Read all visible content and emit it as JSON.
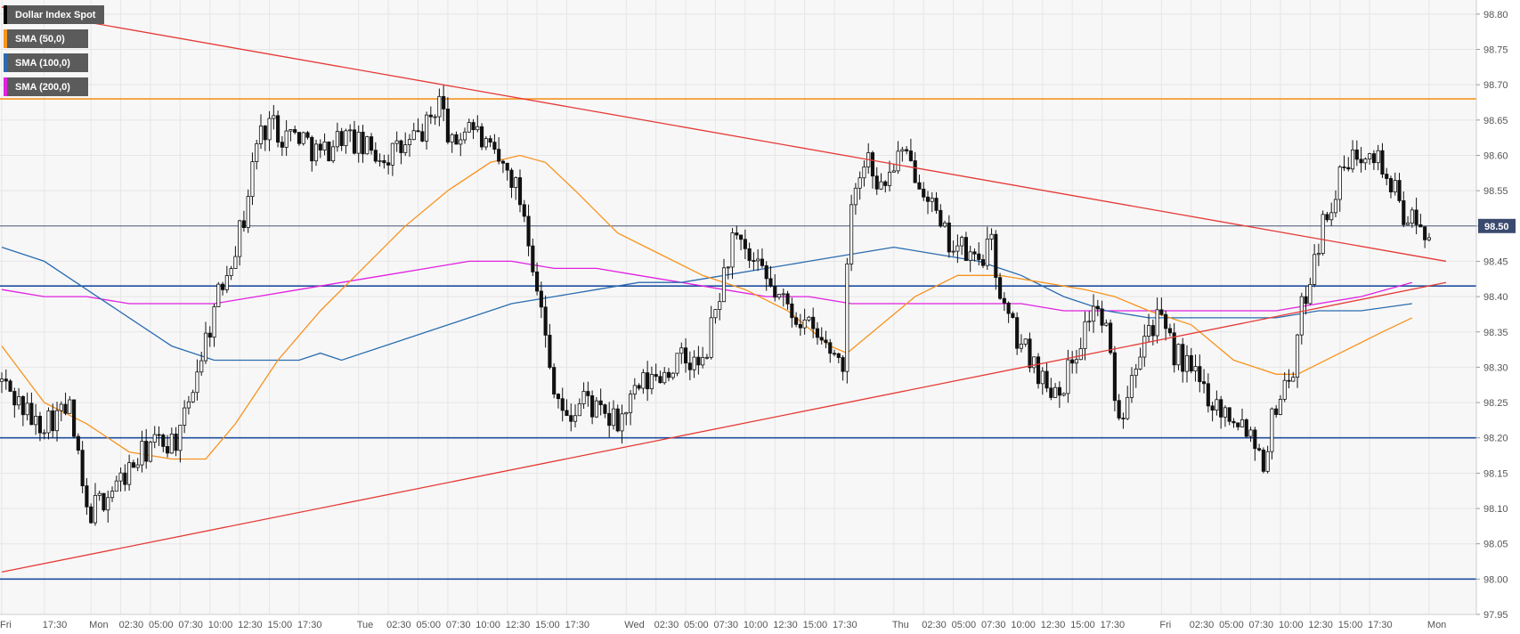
{
  "chart_data": {
    "type": "candlestick",
    "title": "Dollar Index Spot",
    "legend": [
      {
        "label": "Dollar Index Spot",
        "color": "#000000"
      },
      {
        "label": "SMA (50,0)",
        "color": "#f7931e"
      },
      {
        "label": "SMA (100,0)",
        "color": "#2b6cb0"
      },
      {
        "label": "SMA (200,0)",
        "color": "#e020e0"
      }
    ],
    "ylim": [
      97.95,
      98.82
    ],
    "y_ticks": [
      "98.80",
      "98.75",
      "98.70",
      "98.65",
      "98.60",
      "98.55",
      "98.50",
      "98.45",
      "98.40",
      "98.35",
      "98.30",
      "98.25",
      "98.20",
      "98.15",
      "98.10",
      "98.05",
      "98.00",
      "97.95"
    ],
    "y_tick_values": [
      98.8,
      98.75,
      98.7,
      98.65,
      98.6,
      98.55,
      98.5,
      98.45,
      98.4,
      98.35,
      98.3,
      98.25,
      98.2,
      98.15,
      98.1,
      98.05,
      98.0,
      97.95
    ],
    "x_ticks": [
      "Fri",
      "17:30",
      "Mon",
      "02:30",
      "05:00",
      "07:30",
      "10:00",
      "12:30",
      "15:00",
      "17:30",
      "Tue",
      "02:30",
      "05:00",
      "07:30",
      "10:00",
      "12:30",
      "15:00",
      "17:30",
      "Wed",
      "02:30",
      "05:00",
      "07:30",
      "10:00",
      "12:30",
      "15:00",
      "17:30",
      "Thu",
      "02:30",
      "05:00",
      "07:30",
      "10:00",
      "12:30",
      "15:00",
      "17:30",
      "Fri",
      "02:30",
      "05:00",
      "07:30",
      "10:00",
      "12:30",
      "15:00",
      "17:30",
      "Mon"
    ],
    "x_tick_positions": [
      0,
      10,
      21,
      28,
      35,
      42,
      49,
      56,
      63,
      70,
      84,
      91,
      98,
      105,
      112,
      119,
      126,
      133,
      147,
      154,
      161,
      168,
      175,
      182,
      189,
      196,
      210,
      217,
      224,
      231,
      238,
      245,
      252,
      259,
      273,
      280,
      287,
      294,
      301,
      308,
      315,
      322,
      336
    ],
    "bar_count": 340,
    "current_price": "98.50",
    "current_price_value": 98.5,
    "horizontal_levels": [
      {
        "value": 98.68,
        "color": "#f7931e"
      },
      {
        "value": 98.415,
        "color": "#1f4e9e"
      },
      {
        "value": 98.2,
        "color": "#1f4e9e"
      },
      {
        "value": 98.0,
        "color": "#1f4e9e"
      },
      {
        "value": 98.5,
        "color": "#4a5a7a"
      }
    ],
    "trendlines": [
      {
        "x1": 0,
        "y1": 98.81,
        "x2": 340,
        "y2": 98.45,
        "color": "#e53935"
      },
      {
        "x1": 0,
        "y1": 98.01,
        "x2": 340,
        "y2": 98.42,
        "color": "#e53935"
      }
    ],
    "anchors": [
      [
        0,
        98.28
      ],
      [
        8,
        98.22
      ],
      [
        16,
        98.24
      ],
      [
        20,
        98.09
      ],
      [
        28,
        98.14
      ],
      [
        35,
        98.19
      ],
      [
        42,
        98.2
      ],
      [
        46,
        98.3
      ],
      [
        49,
        98.36
      ],
      [
        53,
        98.44
      ],
      [
        57,
        98.51
      ],
      [
        60,
        98.62
      ],
      [
        63,
        98.65
      ],
      [
        66,
        98.63
      ],
      [
        70,
        98.63
      ],
      [
        75,
        98.6
      ],
      [
        80,
        98.63
      ],
      [
        85,
        98.61
      ],
      [
        90,
        98.6
      ],
      [
        95,
        98.61
      ],
      [
        100,
        98.64
      ],
      [
        103,
        98.68
      ],
      [
        106,
        98.61
      ],
      [
        110,
        98.65
      ],
      [
        115,
        98.6
      ],
      [
        120,
        98.57
      ],
      [
        123,
        98.52
      ],
      [
        126,
        98.42
      ],
      [
        129,
        98.3
      ],
      [
        133,
        98.22
      ],
      [
        137,
        98.26
      ],
      [
        141,
        98.23
      ],
      [
        145,
        98.22
      ],
      [
        150,
        98.27
      ],
      [
        155,
        98.29
      ],
      [
        160,
        98.31
      ],
      [
        165,
        98.3
      ],
      [
        168,
        98.38
      ],
      [
        172,
        98.48
      ],
      [
        176,
        98.45
      ],
      [
        180,
        98.42
      ],
      [
        184,
        98.39
      ],
      [
        188,
        98.37
      ],
      [
        192,
        98.34
      ],
      [
        196,
        98.32
      ],
      [
        198,
        98.31
      ],
      [
        200,
        98.55
      ],
      [
        204,
        98.6
      ],
      [
        207,
        98.55
      ],
      [
        211,
        98.6
      ],
      [
        215,
        98.58
      ],
      [
        218,
        98.55
      ],
      [
        221,
        98.49
      ],
      [
        225,
        98.47
      ],
      [
        229,
        98.45
      ],
      [
        233,
        98.47
      ],
      [
        236,
        98.38
      ],
      [
        240,
        98.33
      ],
      [
        243,
        98.31
      ],
      [
        246,
        98.27
      ],
      [
        250,
        98.28
      ],
      [
        254,
        98.34
      ],
      [
        257,
        98.39
      ],
      [
        260,
        98.35
      ],
      [
        263,
        98.22
      ],
      [
        266,
        98.3
      ],
      [
        269,
        98.35
      ],
      [
        272,
        98.37
      ],
      [
        275,
        98.33
      ],
      [
        279,
        98.3
      ],
      [
        283,
        98.27
      ],
      [
        287,
        98.24
      ],
      [
        291,
        98.23
      ],
      [
        294,
        98.21
      ],
      [
        297,
        98.17
      ],
      [
        300,
        98.25
      ],
      [
        304,
        98.3
      ],
      [
        306,
        98.38
      ],
      [
        309,
        98.46
      ],
      [
        312,
        98.52
      ],
      [
        316,
        98.58
      ],
      [
        319,
        98.6
      ],
      [
        322,
        98.62
      ],
      [
        326,
        98.57
      ],
      [
        330,
        98.52
      ],
      [
        334,
        98.49
      ],
      [
        336,
        98.5
      ]
    ],
    "sma50": [
      [
        0,
        98.33
      ],
      [
        10,
        98.25
      ],
      [
        20,
        98.22
      ],
      [
        30,
        98.18
      ],
      [
        40,
        98.17
      ],
      [
        48,
        98.17
      ],
      [
        55,
        98.22
      ],
      [
        65,
        98.31
      ],
      [
        75,
        98.38
      ],
      [
        85,
        98.44
      ],
      [
        95,
        98.5
      ],
      [
        105,
        98.55
      ],
      [
        115,
        98.59
      ],
      [
        122,
        98.6
      ],
      [
        128,
        98.59
      ],
      [
        135,
        98.55
      ],
      [
        145,
        98.49
      ],
      [
        155,
        98.46
      ],
      [
        165,
        98.43
      ],
      [
        175,
        98.41
      ],
      [
        185,
        98.38
      ],
      [
        195,
        98.33
      ],
      [
        199,
        98.32
      ],
      [
        205,
        98.35
      ],
      [
        215,
        98.4
      ],
      [
        225,
        98.43
      ],
      [
        235,
        98.43
      ],
      [
        245,
        98.42
      ],
      [
        255,
        98.41
      ],
      [
        262,
        98.4
      ],
      [
        270,
        98.38
      ],
      [
        280,
        98.36
      ],
      [
        290,
        98.31
      ],
      [
        300,
        98.29
      ],
      [
        305,
        98.29
      ],
      [
        315,
        98.32
      ],
      [
        325,
        98.35
      ],
      [
        332,
        98.37
      ]
    ],
    "sma100": [
      [
        0,
        98.47
      ],
      [
        10,
        98.45
      ],
      [
        20,
        98.41
      ],
      [
        30,
        98.37
      ],
      [
        40,
        98.33
      ],
      [
        50,
        98.31
      ],
      [
        60,
        98.31
      ],
      [
        70,
        98.31
      ],
      [
        75,
        98.32
      ],
      [
        80,
        98.31
      ],
      [
        90,
        98.33
      ],
      [
        100,
        98.35
      ],
      [
        110,
        98.37
      ],
      [
        120,
        98.39
      ],
      [
        130,
        98.4
      ],
      [
        140,
        98.41
      ],
      [
        150,
        98.42
      ],
      [
        160,
        98.42
      ],
      [
        170,
        98.43
      ],
      [
        180,
        98.44
      ],
      [
        190,
        98.45
      ],
      [
        200,
        98.46
      ],
      [
        210,
        98.47
      ],
      [
        220,
        98.46
      ],
      [
        230,
        98.45
      ],
      [
        240,
        98.43
      ],
      [
        250,
        98.4
      ],
      [
        260,
        98.38
      ],
      [
        270,
        98.37
      ],
      [
        280,
        98.37
      ],
      [
        290,
        98.37
      ],
      [
        300,
        98.37
      ],
      [
        310,
        98.38
      ],
      [
        320,
        98.38
      ],
      [
        332,
        98.39
      ]
    ],
    "sma200": [
      [
        0,
        98.41
      ],
      [
        10,
        98.4
      ],
      [
        20,
        98.4
      ],
      [
        30,
        98.39
      ],
      [
        40,
        98.39
      ],
      [
        50,
        98.39
      ],
      [
        60,
        98.4
      ],
      [
        70,
        98.41
      ],
      [
        80,
        98.42
      ],
      [
        90,
        98.43
      ],
      [
        100,
        98.44
      ],
      [
        110,
        98.45
      ],
      [
        120,
        98.45
      ],
      [
        130,
        98.44
      ],
      [
        140,
        98.44
      ],
      [
        150,
        98.43
      ],
      [
        160,
        98.42
      ],
      [
        170,
        98.41
      ],
      [
        180,
        98.4
      ],
      [
        190,
        98.4
      ],
      [
        200,
        98.39
      ],
      [
        210,
        98.39
      ],
      [
        220,
        98.39
      ],
      [
        230,
        98.39
      ],
      [
        240,
        98.39
      ],
      [
        250,
        98.38
      ],
      [
        260,
        98.38
      ],
      [
        270,
        98.38
      ],
      [
        280,
        98.38
      ],
      [
        290,
        98.38
      ],
      [
        300,
        98.38
      ],
      [
        310,
        98.39
      ],
      [
        320,
        98.4
      ],
      [
        332,
        98.42
      ]
    ]
  }
}
